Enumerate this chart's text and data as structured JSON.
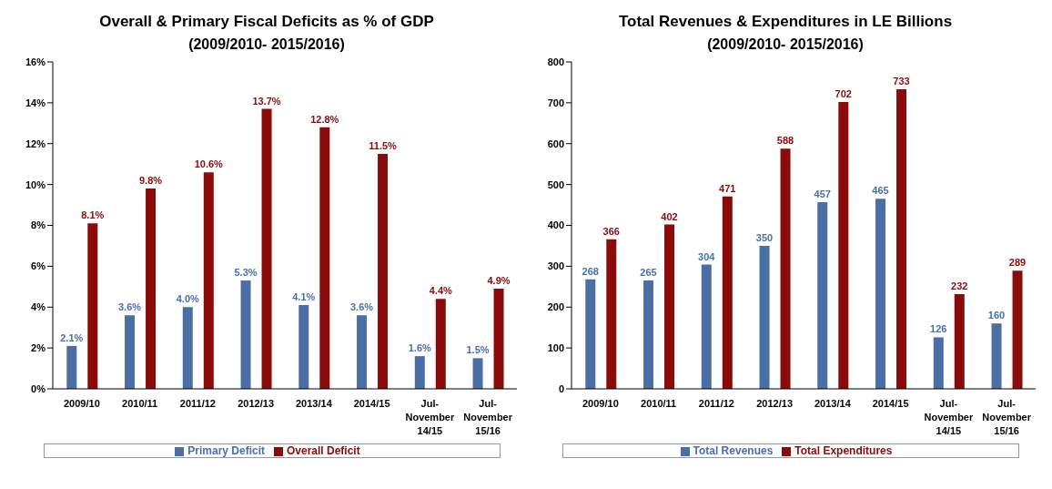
{
  "chart_data": [
    {
      "type": "bar",
      "title": "Overall & Primary Fiscal Deficits as % of GDP",
      "subtitle": "(2009/2010- 2015/2016)",
      "categories": [
        "2009/10",
        "2010/11",
        "2011/12",
        "2012/13",
        "2013/14",
        "2014/15",
        "Jul- November 14/15",
        "Jul- November 15/16"
      ],
      "series": [
        {
          "name": "Primary Deficit",
          "color": "#4a6fa5",
          "values": [
            2.1,
            3.6,
            4.0,
            5.3,
            4.1,
            3.6,
            1.6,
            1.5
          ],
          "value_labels": [
            "2.1%",
            "3.6%",
            "4.0%",
            "5.3%",
            "4.1%",
            "3.6%",
            "1.6%",
            "1.5%"
          ]
        },
        {
          "name": "Overall Deficit",
          "color": "#8b0a0a",
          "values": [
            8.1,
            9.8,
            10.6,
            13.7,
            12.8,
            11.5,
            4.4,
            4.9
          ],
          "value_labels": [
            "8.1%",
            "9.8%",
            "10.6%",
            "13.7%",
            "12.8%",
            "11.5%",
            "4.4%",
            "4.9%"
          ]
        }
      ],
      "ylim": [
        0,
        16
      ],
      "yticks": [
        {
          "value": 0,
          "label": "0%"
        },
        {
          "value": 2,
          "label": "2%"
        },
        {
          "value": 4,
          "label": "4%"
        },
        {
          "value": 6,
          "label": "6%"
        },
        {
          "value": 8,
          "label": "8%"
        },
        {
          "value": 10,
          "label": "10%"
        },
        {
          "value": 12,
          "label": "12%"
        },
        {
          "value": 14,
          "label": "14%"
        },
        {
          "value": 16,
          "label": "16%"
        }
      ],
      "grid": false,
      "legend": "bottom"
    },
    {
      "type": "bar",
      "title": "Total Revenues & Expenditures  in LE Billions",
      "subtitle": "(2009/2010- 2015/2016)",
      "categories": [
        "2009/10",
        "2010/11",
        "2011/12",
        "2012/13",
        "2013/14",
        "2014/15",
        "Jul- November 14/15",
        "Jul- November 15/16"
      ],
      "series": [
        {
          "name": "Total Revenues",
          "color": "#4a6fa5",
          "values": [
            268,
            265,
            304,
            350,
            457,
            465,
            126,
            160
          ]
        },
        {
          "name": "Total Expenditures",
          "color": "#8b0a0a",
          "values": [
            366,
            402,
            471,
            588,
            702,
            733,
            232,
            289
          ]
        }
      ],
      "ylim": [
        0,
        800
      ],
      "yticks": [
        0,
        100,
        200,
        300,
        400,
        500,
        600,
        700,
        800
      ],
      "grid": false,
      "legend": "bottom",
      "data_labels": true
    }
  ]
}
